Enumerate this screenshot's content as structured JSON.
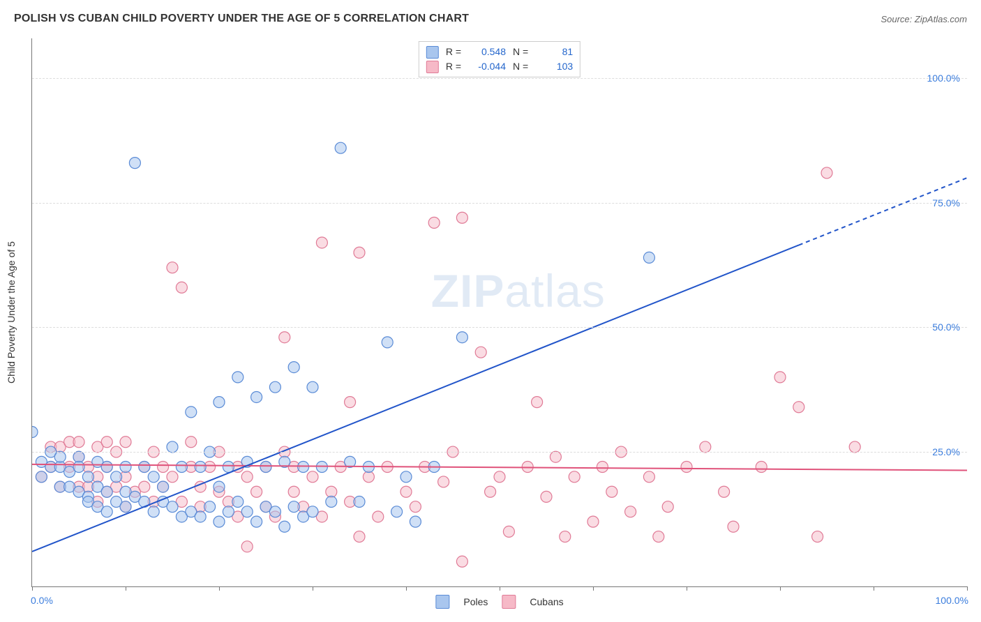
{
  "header": {
    "title": "POLISH VS CUBAN CHILD POVERTY UNDER THE AGE OF 5 CORRELATION CHART",
    "source_prefix": "Source: ",
    "source_name": "ZipAtlas.com"
  },
  "watermark": {
    "bold": "ZIP",
    "light": "atlas"
  },
  "chart": {
    "type": "scatter",
    "y_axis_label": "Child Poverty Under the Age of 5",
    "xlim": [
      0,
      100
    ],
    "ylim": [
      -2,
      108
    ],
    "x_ticks_major": [
      0,
      10,
      20,
      30,
      40,
      50,
      60,
      70,
      80,
      90,
      100
    ],
    "y_gridlines": [
      25,
      50,
      75,
      100
    ],
    "y_tick_labels": [
      "25.0%",
      "50.0%",
      "75.0%",
      "100.0%"
    ],
    "x_axis_start_label": "0.0%",
    "x_axis_end_label": "100.0%",
    "background_color": "#ffffff",
    "grid_color": "#dddddd",
    "axis_color": "#777777",
    "tick_label_color": "#3b7ddd",
    "marker_radius": 8,
    "marker_stroke_width": 1.2,
    "series": {
      "poles": {
        "label": "Poles",
        "fill_color": "#a9c6ee",
        "stroke_color": "#5a8bd6",
        "fill_opacity": 0.55,
        "trend": {
          "slope": 0.75,
          "intercept": 5,
          "solid_until_x": 82,
          "color": "#2154c9",
          "width": 2
        },
        "stats": {
          "R": "0.548",
          "N": "81"
        },
        "points": [
          [
            0,
            29
          ],
          [
            1,
            23
          ],
          [
            1,
            20
          ],
          [
            2,
            25
          ],
          [
            2,
            22
          ],
          [
            3,
            22
          ],
          [
            3,
            18
          ],
          [
            3,
            24
          ],
          [
            4,
            18
          ],
          [
            4,
            21
          ],
          [
            5,
            17
          ],
          [
            5,
            24
          ],
          [
            5,
            22
          ],
          [
            6,
            16
          ],
          [
            6,
            20
          ],
          [
            6,
            15
          ],
          [
            7,
            18
          ],
          [
            7,
            23
          ],
          [
            7,
            14
          ],
          [
            8,
            13
          ],
          [
            8,
            22
          ],
          [
            8,
            17
          ],
          [
            9,
            15
          ],
          [
            9,
            20
          ],
          [
            10,
            14
          ],
          [
            10,
            17
          ],
          [
            10,
            22
          ],
          [
            11,
            83
          ],
          [
            11,
            16
          ],
          [
            12,
            15
          ],
          [
            12,
            22
          ],
          [
            13,
            13
          ],
          [
            13,
            20
          ],
          [
            14,
            15
          ],
          [
            14,
            18
          ],
          [
            15,
            26
          ],
          [
            15,
            14
          ],
          [
            16,
            12
          ],
          [
            16,
            22
          ],
          [
            17,
            13
          ],
          [
            17,
            33
          ],
          [
            18,
            12
          ],
          [
            18,
            22
          ],
          [
            19,
            14
          ],
          [
            19,
            25
          ],
          [
            20,
            11
          ],
          [
            20,
            18
          ],
          [
            20,
            35
          ],
          [
            21,
            13
          ],
          [
            21,
            22
          ],
          [
            22,
            15
          ],
          [
            22,
            40
          ],
          [
            23,
            13
          ],
          [
            23,
            23
          ],
          [
            24,
            11
          ],
          [
            24,
            36
          ],
          [
            25,
            14
          ],
          [
            25,
            22
          ],
          [
            26,
            13
          ],
          [
            26,
            38
          ],
          [
            27,
            10
          ],
          [
            27,
            23
          ],
          [
            28,
            14
          ],
          [
            28,
            42
          ],
          [
            29,
            12
          ],
          [
            29,
            22
          ],
          [
            30,
            13
          ],
          [
            30,
            38
          ],
          [
            31,
            22
          ],
          [
            32,
            15
          ],
          [
            33,
            86
          ],
          [
            34,
            23
          ],
          [
            35,
            15
          ],
          [
            36,
            22
          ],
          [
            38,
            47
          ],
          [
            39,
            13
          ],
          [
            40,
            20
          ],
          [
            41,
            11
          ],
          [
            43,
            22
          ],
          [
            46,
            48
          ],
          [
            66,
            64
          ]
        ]
      },
      "cubans": {
        "label": "Cubans",
        "fill_color": "#f6b9c7",
        "stroke_color": "#e07a96",
        "fill_opacity": 0.5,
        "trend": {
          "slope": -0.012,
          "intercept": 22.5,
          "solid_until_x": 100,
          "color": "#e0527a",
          "width": 2
        },
        "stats": {
          "R": "-0.044",
          "N": "103"
        },
        "points": [
          [
            1,
            20
          ],
          [
            2,
            26
          ],
          [
            2,
            22
          ],
          [
            3,
            26
          ],
          [
            3,
            18
          ],
          [
            4,
            27
          ],
          [
            4,
            22
          ],
          [
            5,
            24
          ],
          [
            5,
            18
          ],
          [
            5,
            27
          ],
          [
            6,
            22
          ],
          [
            6,
            18
          ],
          [
            7,
            26
          ],
          [
            7,
            20
          ],
          [
            7,
            15
          ],
          [
            8,
            27
          ],
          [
            8,
            17
          ],
          [
            8,
            22
          ],
          [
            9,
            18
          ],
          [
            9,
            25
          ],
          [
            10,
            20
          ],
          [
            10,
            14
          ],
          [
            10,
            27
          ],
          [
            11,
            17
          ],
          [
            12,
            22
          ],
          [
            12,
            18
          ],
          [
            13,
            25
          ],
          [
            13,
            15
          ],
          [
            14,
            22
          ],
          [
            14,
            18
          ],
          [
            15,
            62
          ],
          [
            15,
            20
          ],
          [
            16,
            58
          ],
          [
            16,
            15
          ],
          [
            17,
            22
          ],
          [
            17,
            27
          ],
          [
            18,
            18
          ],
          [
            18,
            14
          ],
          [
            19,
            22
          ],
          [
            20,
            25
          ],
          [
            20,
            17
          ],
          [
            21,
            15
          ],
          [
            22,
            22
          ],
          [
            22,
            12
          ],
          [
            23,
            20
          ],
          [
            23,
            6
          ],
          [
            24,
            17
          ],
          [
            25,
            14
          ],
          [
            25,
            22
          ],
          [
            26,
            12
          ],
          [
            27,
            25
          ],
          [
            27,
            48
          ],
          [
            28,
            17
          ],
          [
            28,
            22
          ],
          [
            29,
            14
          ],
          [
            30,
            20
          ],
          [
            31,
            67
          ],
          [
            31,
            12
          ],
          [
            32,
            17
          ],
          [
            33,
            22
          ],
          [
            34,
            35
          ],
          [
            34,
            15
          ],
          [
            35,
            8
          ],
          [
            35,
            65
          ],
          [
            36,
            20
          ],
          [
            37,
            12
          ],
          [
            38,
            22
          ],
          [
            40,
            17
          ],
          [
            41,
            14
          ],
          [
            42,
            22
          ],
          [
            43,
            71
          ],
          [
            44,
            19
          ],
          [
            45,
            25
          ],
          [
            46,
            3
          ],
          [
            46,
            72
          ],
          [
            48,
            45
          ],
          [
            49,
            17
          ],
          [
            50,
            20
          ],
          [
            51,
            9
          ],
          [
            53,
            22
          ],
          [
            54,
            35
          ],
          [
            55,
            16
          ],
          [
            56,
            24
          ],
          [
            57,
            8
          ],
          [
            58,
            20
          ],
          [
            60,
            11
          ],
          [
            61,
            22
          ],
          [
            62,
            17
          ],
          [
            63,
            25
          ],
          [
            64,
            13
          ],
          [
            66,
            20
          ],
          [
            67,
            8
          ],
          [
            68,
            14
          ],
          [
            70,
            22
          ],
          [
            72,
            26
          ],
          [
            74,
            17
          ],
          [
            75,
            10
          ],
          [
            78,
            22
          ],
          [
            80,
            40
          ],
          [
            82,
            34
          ],
          [
            84,
            8
          ],
          [
            85,
            81
          ],
          [
            88,
            26
          ]
        ]
      }
    }
  },
  "legend": {
    "box1_label": "Poles",
    "box2_label": "Cubans"
  }
}
